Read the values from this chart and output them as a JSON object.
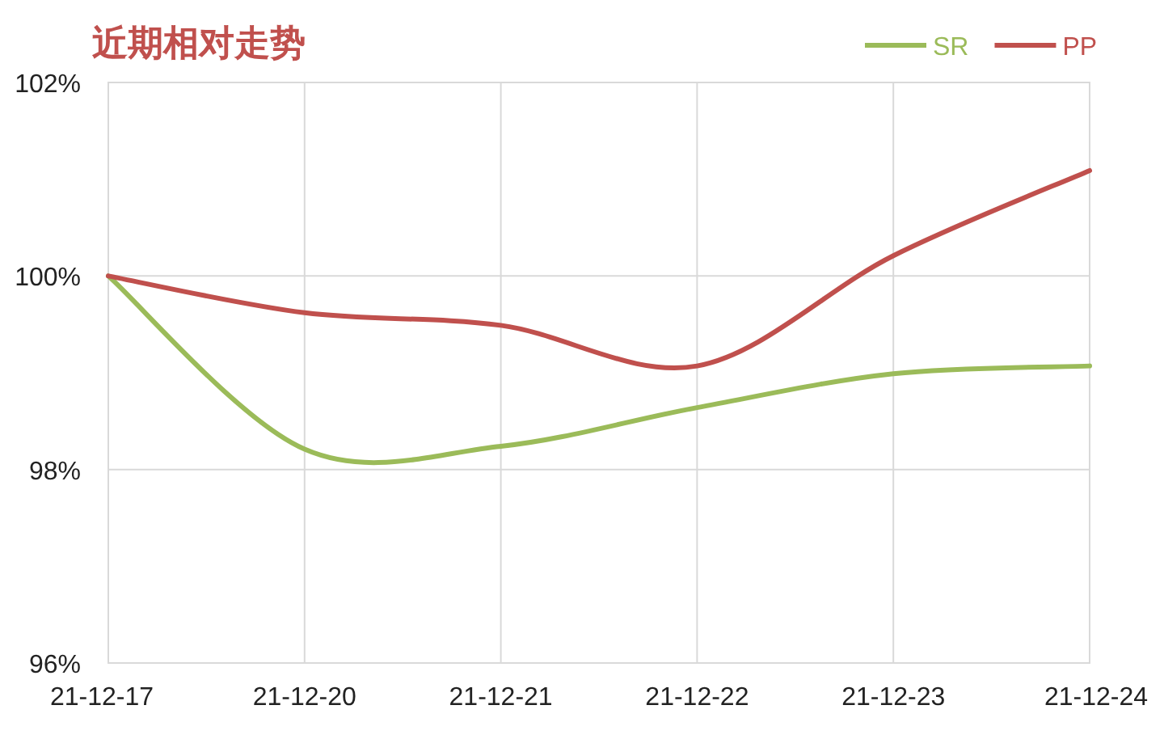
{
  "chart_data": {
    "type": "line",
    "title": "近期相对走势",
    "categories": [
      "21-12-17",
      "21-12-20",
      "21-12-21",
      "21-12-22",
      "21-12-23",
      "21-12-24"
    ],
    "series": [
      {
        "name": "SR",
        "color": "#9bbb59",
        "values": [
          100,
          98.21,
          98.24,
          98.64,
          98.99,
          99.07
        ]
      },
      {
        "name": "PP",
        "color": "#c0504d",
        "values": [
          100,
          99.62,
          99.49,
          99.07,
          100.21,
          101.09
        ]
      }
    ],
    "ylim": [
      96,
      102
    ],
    "yticks": [
      {
        "value": 96,
        "label": "96%"
      },
      {
        "value": 98,
        "label": "98%"
      },
      {
        "value": 100,
        "label": "100%"
      },
      {
        "value": 102,
        "label": "102%"
      }
    ],
    "grid": true,
    "legend": "top right",
    "marker": "none",
    "line_style": "solid"
  }
}
